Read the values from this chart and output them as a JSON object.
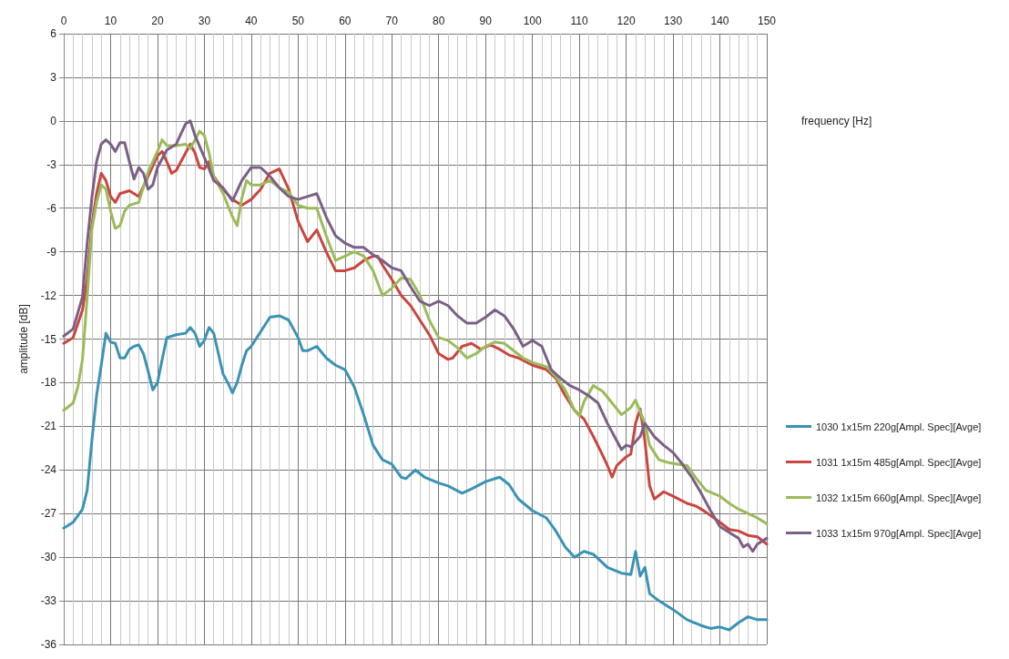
{
  "chart_data": {
    "type": "line",
    "xlabel": "frequency [Hz]",
    "ylabel": "amplitude [dB]",
    "xlim": [
      0,
      150
    ],
    "xticks": [
      0,
      10,
      20,
      30,
      40,
      50,
      60,
      70,
      80,
      90,
      100,
      110,
      120,
      130,
      140,
      150
    ],
    "ylim": [
      -36,
      6
    ],
    "yticks": [
      -36,
      -33,
      -30,
      -27,
      -24,
      -21,
      -18,
      -15,
      -12,
      -9,
      -6,
      -3,
      0,
      3,
      6
    ],
    "grid": true,
    "legend": "right",
    "marker": "none",
    "line_style": "solid",
    "series": [
      {
        "name": "1030 1x15m 220g[Ampl. Spec][Avge]",
        "color": "#3a93b5",
        "x": [
          0,
          2,
          4,
          5,
          6,
          7,
          8,
          9,
          10,
          11,
          12,
          13,
          14,
          15,
          16,
          17,
          18,
          19,
          20,
          21,
          22,
          24,
          26,
          27,
          28,
          29,
          30,
          31,
          32,
          33,
          34,
          35,
          36,
          37,
          38,
          39,
          40,
          42,
          44,
          46,
          48,
          50,
          51,
          52,
          54,
          56,
          58,
          60,
          62,
          64,
          66,
          68,
          70,
          72,
          73,
          75,
          77,
          80,
          82,
          85,
          87,
          90,
          93,
          95,
          97,
          100,
          103,
          105,
          107,
          109,
          111,
          113,
          116,
          119,
          121,
          122,
          123,
          124,
          125,
          127,
          130,
          133,
          136,
          138,
          140,
          142,
          144,
          146,
          148,
          150
        ],
        "values": [
          -28,
          -27.6,
          -26.7,
          -25.4,
          -22,
          -18.9,
          -16.8,
          -14.6,
          -15.2,
          -15.3,
          -16.3,
          -16.3,
          -15.7,
          -15.5,
          -15.4,
          -16,
          -17.2,
          -18.5,
          -18,
          -16.4,
          -14.9,
          -14.7,
          -14.6,
          -14.2,
          -14.6,
          -15.5,
          -15.1,
          -14.2,
          -14.6,
          -16,
          -17.4,
          -18,
          -18.7,
          -18,
          -16.8,
          -15.8,
          -15.5,
          -14.5,
          -13.5,
          -13.4,
          -13.7,
          -14.9,
          -15.8,
          -15.8,
          -15.5,
          -16.3,
          -16.8,
          -17.1,
          -18.3,
          -20.2,
          -22.3,
          -23.3,
          -23.6,
          -24.5,
          -24.6,
          -24,
          -24.5,
          -24.9,
          -25.1,
          -25.6,
          -25.3,
          -24.8,
          -24.5,
          -25,
          -26,
          -26.8,
          -27.3,
          -28.2,
          -29.3,
          -30,
          -29.6,
          -29.8,
          -30.7,
          -31.1,
          -31.2,
          -29.6,
          -31.3,
          -30.7,
          -32.5,
          -33,
          -33.6,
          -34.3,
          -34.7,
          -34.9,
          -34.8,
          -35,
          -34.5,
          -34.1,
          -34.3,
          -34.3
        ]
      },
      {
        "name": "1031 1x15m 485g[Ampl. Spec][Avge]",
        "color": "#c9463f",
        "x": [
          0,
          2,
          4,
          5,
          6,
          7,
          8,
          9,
          10,
          11,
          12,
          14,
          16,
          18,
          20,
          21,
          22,
          23,
          24,
          26,
          27,
          28,
          29,
          30,
          31,
          32,
          34,
          36,
          38,
          40,
          42,
          44,
          46,
          48,
          50,
          52,
          54,
          56,
          58,
          60,
          62,
          64,
          66,
          67,
          68,
          70,
          72,
          74,
          76,
          78,
          80,
          82,
          83,
          85,
          87,
          89,
          91,
          93,
          95,
          97,
          100,
          103,
          105,
          107,
          109,
          111,
          113,
          115,
          116,
          117,
          118,
          119,
          120,
          121,
          122,
          123,
          124,
          125,
          126,
          128,
          130,
          133,
          135,
          137,
          140,
          142,
          144,
          146,
          148,
          150
        ],
        "values": [
          -15.3,
          -14.9,
          -13,
          -10.9,
          -7.2,
          -5,
          -3.6,
          -4.1,
          -5.2,
          -5.6,
          -5,
          -4.8,
          -5.2,
          -3.8,
          -2.4,
          -2.1,
          -2.8,
          -3.6,
          -3.4,
          -2.2,
          -1.6,
          -2.2,
          -3.2,
          -3.3,
          -2.8,
          -3.8,
          -4.7,
          -5.4,
          -5.8,
          -5.4,
          -4.7,
          -3.6,
          -3.3,
          -4.7,
          -6.9,
          -8.3,
          -7.5,
          -9,
          -10.3,
          -10.3,
          -10.1,
          -9.6,
          -9.3,
          -9.3,
          -9.9,
          -10.9,
          -12,
          -12.7,
          -13.7,
          -14.7,
          -16,
          -16.4,
          -16.3,
          -15.5,
          -15.3,
          -15.7,
          -15.4,
          -15.7,
          -16.1,
          -16.3,
          -16.8,
          -17.1,
          -17.7,
          -18.9,
          -19.9,
          -20.5,
          -21.7,
          -23,
          -23.7,
          -24.5,
          -23.7,
          -23.4,
          -23.1,
          -22.9,
          -20.8,
          -19.8,
          -22,
          -25.1,
          -26,
          -25.5,
          -25.8,
          -26.3,
          -26.5,
          -26.9,
          -27.6,
          -28.1,
          -28.2,
          -28.5,
          -28.6,
          -29.1
        ]
      },
      {
        "name": "1032 1x15m 660g[Ampl. Spec][Avge]",
        "color": "#9bbb59",
        "x": [
          0,
          2,
          3,
          4,
          5,
          6,
          7,
          8,
          9,
          10,
          11,
          12,
          13,
          14,
          16,
          18,
          20,
          21,
          22,
          24,
          26,
          27,
          28,
          29,
          30,
          31,
          32,
          34,
          36,
          37,
          38,
          39,
          40,
          42,
          44,
          46,
          48,
          50,
          52,
          54,
          56,
          58,
          60,
          62,
          64,
          66,
          68,
          70,
          72,
          74,
          76,
          78,
          80,
          82,
          84,
          86,
          88,
          90,
          92,
          94,
          96,
          98,
          100,
          103,
          105,
          107,
          109,
          110,
          111,
          113,
          115,
          117,
          119,
          121,
          122,
          124,
          125,
          127,
          129,
          131,
          133,
          135,
          137,
          140,
          142,
          144,
          146,
          148,
          150
        ],
        "values": [
          -19.9,
          -19.4,
          -18.3,
          -16.4,
          -12.1,
          -7.5,
          -5.6,
          -4.4,
          -4.7,
          -6.2,
          -7.4,
          -7.2,
          -6.2,
          -5.8,
          -5.6,
          -3.5,
          -2.1,
          -1.3,
          -1.7,
          -1.7,
          -1.6,
          -1.9,
          -1.3,
          -0.7,
          -1,
          -2.2,
          -3.8,
          -5,
          -6.6,
          -7.2,
          -5.3,
          -4.1,
          -4.4,
          -4.4,
          -4.1,
          -4.6,
          -4.9,
          -5.8,
          -6,
          -6,
          -7.9,
          -9.6,
          -9.3,
          -9,
          -9.3,
          -10.3,
          -12,
          -11.5,
          -10.8,
          -10.9,
          -12,
          -13.7,
          -14.9,
          -15.1,
          -15.6,
          -16.3,
          -16,
          -15.5,
          -15.2,
          -15.3,
          -15.8,
          -16.3,
          -16.6,
          -16.9,
          -17.6,
          -18.5,
          -19.9,
          -20.3,
          -19.3,
          -18.2,
          -18.6,
          -19.4,
          -20.2,
          -19.7,
          -19.2,
          -20.8,
          -22.3,
          -23.3,
          -23.5,
          -23.6,
          -23.7,
          -24.6,
          -25.4,
          -25.8,
          -26.3,
          -26.7,
          -27,
          -27.3,
          -27.7
        ]
      },
      {
        "name": "1033 1x15m 970g[Ampl. Spec][Avge]",
        "color": "#7b5f86",
        "x": [
          0,
          2,
          4,
          5,
          6,
          7,
          8,
          9,
          10,
          11,
          12,
          13,
          14,
          15,
          16,
          17,
          18,
          19,
          20,
          22,
          24,
          25,
          26,
          27,
          28,
          30,
          32,
          34,
          36,
          38,
          40,
          42,
          44,
          46,
          48,
          50,
          52,
          54,
          56,
          58,
          60,
          62,
          64,
          66,
          68,
          70,
          72,
          74,
          76,
          78,
          80,
          82,
          84,
          86,
          88,
          90,
          92,
          94,
          96,
          98,
          100,
          102,
          104,
          106,
          108,
          110,
          112,
          114,
          116,
          118,
          119,
          120,
          121,
          123,
          124,
          126,
          128,
          130,
          132,
          134,
          136,
          138,
          140,
          142,
          144,
          145,
          146,
          147,
          148,
          150
        ],
        "values": [
          -14.8,
          -14.3,
          -12.1,
          -8.4,
          -5.3,
          -2.8,
          -1.6,
          -1.3,
          -1.6,
          -2.1,
          -1.5,
          -1.5,
          -2.8,
          -4,
          -3.2,
          -3.6,
          -4.7,
          -4.4,
          -3.2,
          -2,
          -1.6,
          -0.9,
          -0.2,
          0,
          -1,
          -2.5,
          -4.1,
          -4.6,
          -5.5,
          -4.1,
          -3.2,
          -3.2,
          -3.8,
          -4.6,
          -5.2,
          -5.4,
          -5.2,
          -5,
          -6.6,
          -7.9,
          -8.4,
          -8.7,
          -8.7,
          -9.2,
          -9.6,
          -10.1,
          -10.3,
          -11.4,
          -12.4,
          -12.7,
          -12.4,
          -12.7,
          -13.4,
          -13.9,
          -13.9,
          -13.5,
          -13,
          -13.4,
          -14.3,
          -15.5,
          -15.1,
          -15.5,
          -17.1,
          -17.7,
          -18.2,
          -18.5,
          -18.9,
          -19.4,
          -20.8,
          -22,
          -22.6,
          -22.3,
          -22.4,
          -21.7,
          -20.8,
          -21.7,
          -22.3,
          -22.8,
          -23.6,
          -24.5,
          -25.6,
          -26.8,
          -27.9,
          -28.3,
          -28.7,
          -29.3,
          -29.1,
          -29.6,
          -29.1,
          -28.7
        ]
      }
    ]
  }
}
